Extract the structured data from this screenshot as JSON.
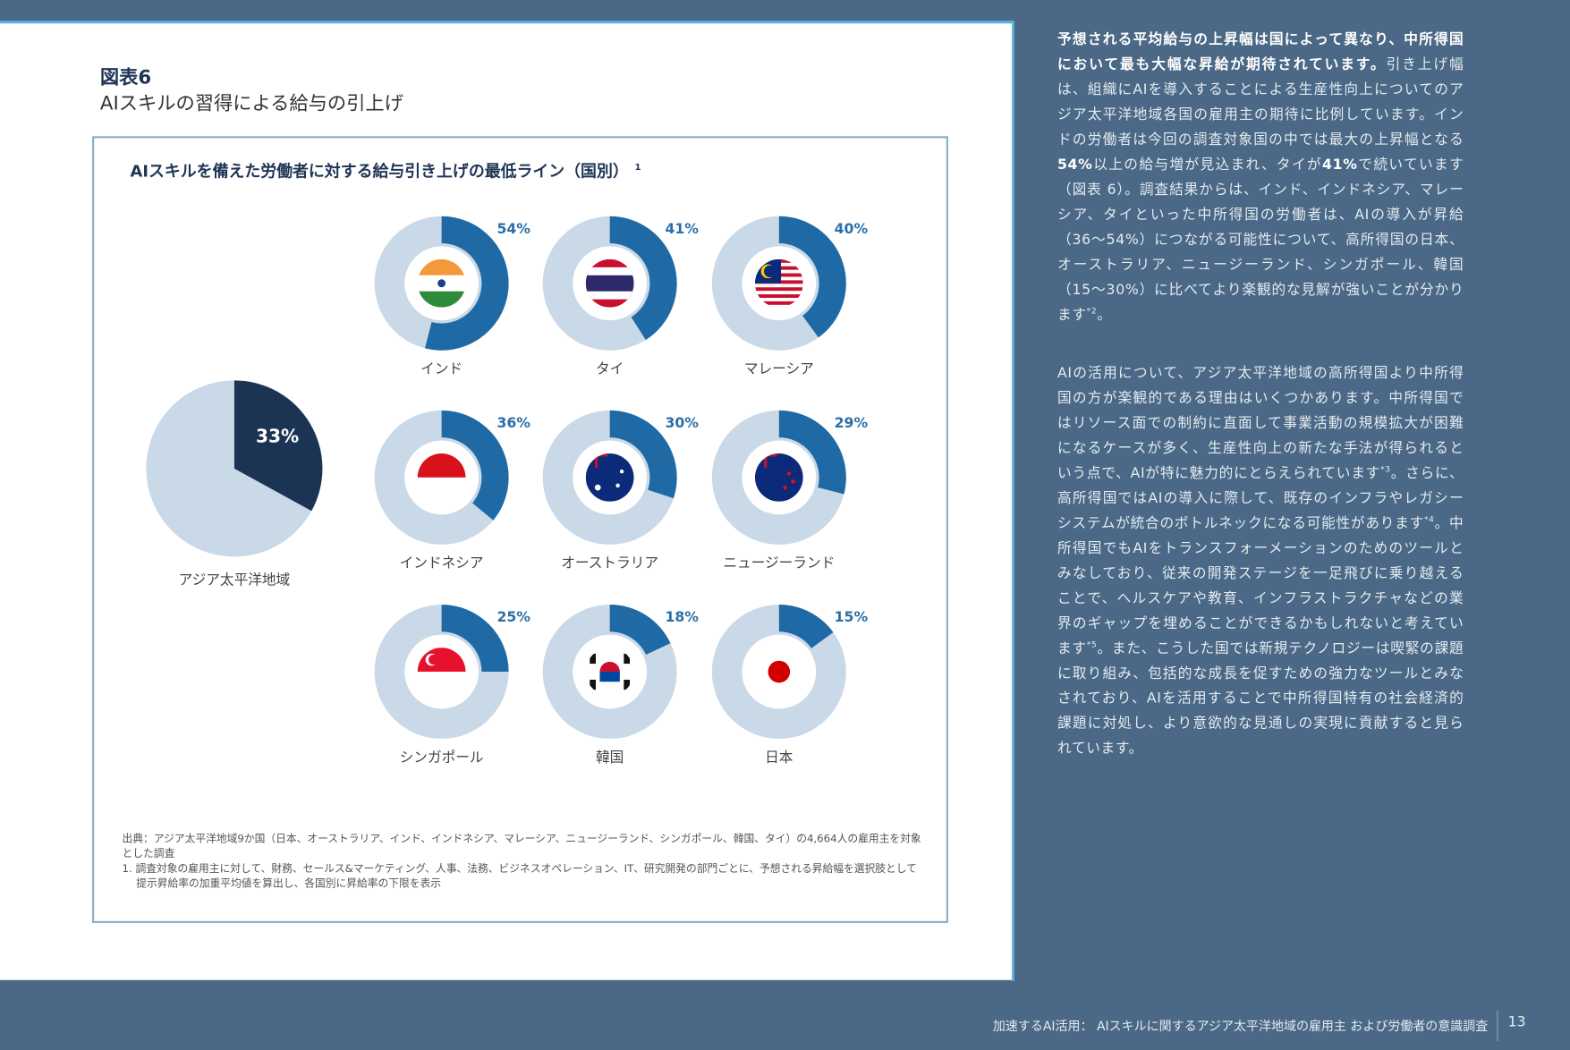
{
  "figure_label": "図表6",
  "figure_title": "AIスキルの習得による給与の引上げ",
  "chart_data": {
    "type": "donut",
    "title": "AIスキルを備えた労働者に対する給与引き上げの最低ライン（国別）",
    "title_note": "1",
    "region": {
      "name": "アジア太平洋地域",
      "value": 33,
      "value_label": "33%"
    },
    "categories": [
      "インド",
      "タイ",
      "マレーシア",
      "インドネシア",
      "オーストラリア",
      "ニュージーランド",
      "シンガポール",
      "韓国",
      "日本"
    ],
    "values": [
      54,
      41,
      40,
      36,
      30,
      29,
      25,
      18,
      15
    ],
    "value_labels": [
      "54%",
      "41%",
      "40%",
      "36%",
      "30%",
      "29%",
      "25%",
      "18%",
      "15%"
    ],
    "color": "#1f6aa5",
    "region_color": "#1c3453",
    "track_color": "#c9d9e8"
  },
  "notes": [
    "出典：アジア太平洋地域9か国（日本、オーストラリア、インド、インドネシア、マレーシア、ニュージーランド、シンガポール、韓国、タイ）の4,664人の雇用主を対象とした調査",
    "1. 調査対象の雇用主に対して、財務、セールス&マーケティング、人事、法務、ビジネスオペレーション、IT、研究開発の部門ごとに、予想される昇給幅を選択肢として提示昇給率の加重平均値を算出し、各国別に昇給率の下限を表示"
  ],
  "body": [
    {
      "runs": [
        {
          "text": "予想される平均給与の上昇幅は国によって異なり、中所得国において最も大幅な昇給が期待されています。",
          "style": "bold"
        },
        {
          "text": "引き上げ幅は、組織にAIを導入することによる生産性向上についてのアジア太平洋地域各国の雇用主の期待に比例しています。インドの労働者は今回の調査対象国の中では最大の上昇幅となる",
          "style": "plain"
        },
        {
          "text": "54%",
          "style": "bold"
        },
        {
          "text": "以上の給与増が見込まれ、タイが",
          "style": "plain"
        },
        {
          "text": "41%",
          "style": "bold"
        },
        {
          "text": "で続いています（図表 6）。調査結果からは、インド、インドネシア、マレーシア、タイといった中所得国の労働者は、AIの導入が昇給（36～54%）につながる可能性について、高所得国の日本、オーストラリア、ニュージーランド、シンガポール、韓国（15～30%）に比べてより楽観的な見解が強いことが分かります",
          "style": "plain"
        },
        {
          "text": "*2",
          "style": "sup"
        },
        {
          "text": "。",
          "style": "plain"
        }
      ]
    },
    {
      "runs": [
        {
          "text": "AIの活用について、アジア太平洋地域の高所得国より中所得国の方が楽観的である理由はいくつかあります。中所得国ではリソース面での制約に直面して事業活動の規模拡大が困難になるケースが多く、生産性向上の新たな手法が得られるという点で、AIが特に魅力的にとらえられています",
          "style": "plain"
        },
        {
          "text": "*3",
          "style": "sup"
        },
        {
          "text": "。さらに、高所得国ではAIの導入に際して、既存のインフラやレガシーシステムが統合のボトルネックになる可能性があります",
          "style": "plain"
        },
        {
          "text": "*4",
          "style": "sup"
        },
        {
          "text": "。中所得国でもAIをトランスフォーメーションのためのツールとみなしており、従来の開発ステージを一足飛びに乗り越えることで、ヘルスケアや教育、インフラストラクチャなどの業界のギャップを埋めることができるかもしれないと考えています",
          "style": "plain"
        },
        {
          "text": "*5",
          "style": "sup"
        },
        {
          "text": "。また、こうした国では新規テクノロジーは喫緊の課題に取り組み、包括的な成長を促すための強力なツールとみなされており、AIを活用することで中所得国特有の社会経済的課題に対処し、より意欲的な見通しの実現に貢献すると見られています。",
          "style": "plain"
        }
      ]
    }
  ],
  "footer": {
    "text": "加速するAI活用： AIスキルに関するアジア太平洋地域の雇用主 および労働者の意識調査",
    "page": "13"
  }
}
